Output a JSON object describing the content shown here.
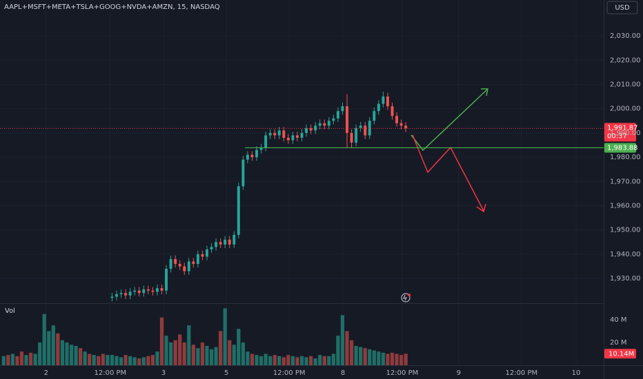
{
  "chart_data": {
    "type": "candlestick",
    "title": "AAPL+MSFT+META+TSLA+GOOG+NVDA+AMZN, 15, NASDAQ",
    "currency": "USD",
    "up_color": "#26a69a",
    "down_color": "#ef5350",
    "grid": true,
    "xlim": [
      -0.5,
      132.8
    ],
    "xticks": [
      {
        "value": 9.4,
        "label": "2"
      },
      {
        "value": 23.6,
        "label": "12:00 PM"
      },
      {
        "value": 35.4,
        "label": "3"
      },
      {
        "value": 49.3,
        "label": "5"
      },
      {
        "value": 63.2,
        "label": "12:00 PM"
      },
      {
        "value": 75.1,
        "label": "8"
      },
      {
        "value": 88.2,
        "label": "12:00 PM"
      },
      {
        "value": 100.7,
        "label": "9"
      },
      {
        "value": 114.6,
        "label": "12:00 PM"
      },
      {
        "value": 126.7,
        "label": "10"
      }
    ],
    "ylim": [
      1919.8,
      2044.8
    ],
    "yticks": [
      {
        "value": 1930,
        "label": "1,930.00"
      },
      {
        "value": 1940,
        "label": "1,940.00"
      },
      {
        "value": 1950,
        "label": "1,950.00"
      },
      {
        "value": 1960,
        "label": "1,960.00"
      },
      {
        "value": 1970,
        "label": "1,970.00"
      },
      {
        "value": 1980,
        "label": "1,980.00"
      },
      {
        "value": 1990,
        "label": "1,990.00"
      },
      {
        "value": 2000,
        "label": "2,000.00"
      },
      {
        "value": 2010,
        "label": "2,010.00"
      },
      {
        "value": 2020,
        "label": "2,020.00"
      },
      {
        "value": 2030,
        "label": "2,030.00"
      }
    ],
    "open": [
      null,
      null,
      null,
      null,
      null,
      null,
      null,
      null,
      null,
      null,
      null,
      null,
      null,
      null,
      null,
      null,
      null,
      null,
      null,
      null,
      null,
      null,
      null,
      null,
      1922,
      1922.5,
      1923.5,
      1924,
      1923,
      1924.5,
      1925,
      1924,
      1925.5,
      1925,
      1924.5,
      1926,
      1925,
      1934,
      1938,
      1936,
      1935,
      1933,
      1937,
      1936,
      1940,
      1939,
      1942,
      1943,
      1945,
      1944,
      1946,
      1944,
      1948,
      1968,
      1979,
      1981,
      1980,
      1983,
      1984,
      1989,
      1990,
      1989,
      1991,
      1988,
      1987,
      1989,
      1988,
      1990,
      1992,
      1991,
      1993,
      1994,
      1993,
      1995,
      1996,
      1999,
      2001,
      1990,
      1986,
      1992,
      1993,
      1989,
      1995,
      1999,
      2002,
      2005,
      2001,
      1997,
      1994,
      1993
    ],
    "high": [
      null,
      null,
      null,
      null,
      null,
      null,
      null,
      null,
      null,
      null,
      null,
      null,
      null,
      null,
      null,
      null,
      null,
      null,
      null,
      null,
      null,
      null,
      null,
      null,
      1924,
      1925,
      1925.5,
      1925.5,
      1926,
      1926.5,
      1926.5,
      1927,
      1927,
      1926.5,
      1927.5,
      1927.5,
      1935.5,
      1939.5,
      1939.5,
      1937.5,
      1936.5,
      1938.5,
      1938.5,
      1941.5,
      1941.5,
      1943.5,
      1944.5,
      1946.5,
      1946.5,
      1947.5,
      1947.5,
      1949.5,
      1969.5,
      1980.5,
      1982.5,
      1982.5,
      1984.5,
      1985.5,
      1990.5,
      1991.5,
      1991.5,
      1992.5,
      1992.5,
      1989.5,
      1990.5,
      1990.5,
      1991.5,
      1993.5,
      1993.5,
      1994.5,
      1995.5,
      1995.5,
      1996.5,
      1997.5,
      2000.5,
      2002.5,
      2006,
      1991.5,
      1993.5,
      1994.5,
      1994.5,
      1996.5,
      2000.5,
      2003.5,
      2007,
      2006.5,
      2002.5,
      1998.5,
      1995.5,
      1994.5
    ],
    "low": [
      null,
      null,
      null,
      null,
      null,
      null,
      null,
      null,
      null,
      null,
      null,
      null,
      null,
      null,
      null,
      null,
      null,
      null,
      null,
      null,
      null,
      null,
      null,
      null,
      1920.5,
      1921,
      1922,
      1921.5,
      1921.5,
      1923,
      1922.5,
      1922.5,
      1923.5,
      1923,
      1923,
      1923.5,
      1923.5,
      1932.5,
      1934.5,
      1933.5,
      1931.5,
      1931.5,
      1934.5,
      1934.5,
      1937.5,
      1937.5,
      1940.5,
      1941.5,
      1942.5,
      1942.5,
      1942.5,
      1942.5,
      1946.5,
      1966.5,
      1977.5,
      1978.5,
      1978.5,
      1981.5,
      1982.5,
      1987.5,
      1987.5,
      1987.5,
      1986.5,
      1985.5,
      1985.5,
      1986.5,
      1986.5,
      1988.5,
      1989.5,
      1989.5,
      1991.5,
      1991.5,
      1991.5,
      1993.5,
      1994.5,
      1997.5,
      1984,
      1984,
      1984.5,
      1990.5,
      1987.5,
      1987.5,
      1993.5,
      1997.5,
      2000.5,
      1999.5,
      1995.5,
      1992.5,
      1991.5,
      1990.37
    ],
    "close": [
      null,
      null,
      null,
      null,
      null,
      null,
      null,
      null,
      null,
      null,
      null,
      null,
      null,
      null,
      null,
      null,
      null,
      null,
      null,
      null,
      null,
      null,
      null,
      null,
      1922.5,
      1923.5,
      1924,
      1923,
      1924.5,
      1925,
      1924,
      1925.5,
      1925,
      1924.5,
      1926,
      1925,
      1934,
      1938,
      1936,
      1935,
      1933,
      1937,
      1936,
      1940,
      1939,
      1942,
      1943,
      1945,
      1944,
      1946,
      1944,
      1948,
      1968,
      1979,
      1981,
      1980,
      1983,
      1984,
      1989,
      1990,
      1989,
      1991,
      1988,
      1987,
      1989,
      1988,
      1990,
      1992,
      1991,
      1993,
      1994,
      1993,
      1995,
      1996,
      1999,
      2001,
      1990,
      1986,
      1992,
      1993,
      1989,
      1995,
      1999,
      2002,
      2005,
      2001,
      1997,
      1994,
      1993,
      1991.87
    ],
    "last_price": {
      "value": 1991.87,
      "label": "1,991.87"
    },
    "countdown": "00:37",
    "level": {
      "value": 1983.88,
      "label": "1,983.88"
    },
    "volume": {
      "name": "Vol",
      "up_color": "#1f6f67",
      "down_color": "#8f3b3d",
      "ylim": [
        0,
        54.5
      ],
      "yticks": [
        {
          "value": 20,
          "label": "20 M"
        },
        {
          "value": 40,
          "label": "40 M"
        }
      ],
      "values": [
        8,
        9,
        10,
        8,
        12,
        9,
        11,
        10,
        20,
        45,
        30,
        35,
        28,
        22,
        20,
        18,
        17,
        15,
        12,
        10,
        9,
        8,
        10,
        9,
        9,
        8,
        7,
        9,
        8,
        7,
        6,
        7,
        8,
        9,
        12,
        42,
        26,
        20,
        22,
        27,
        20,
        35,
        18,
        15,
        20,
        17,
        14,
        16,
        30,
        50,
        22,
        18,
        32,
        20,
        12,
        10,
        9,
        8,
        10,
        8,
        9,
        8,
        7,
        9,
        8,
        7,
        8,
        7,
        8,
        6,
        9,
        8,
        8,
        10,
        26,
        44,
        30,
        22,
        17,
        16,
        15,
        14,
        13,
        12,
        11,
        10,
        11,
        10,
        9,
        10.14
      ],
      "value_labels": [
        null,
        null,
        null,
        null,
        null,
        null,
        null,
        null,
        null,
        null,
        null,
        null,
        null,
        null,
        null,
        null,
        null,
        null,
        null,
        null,
        null,
        null,
        null,
        null,
        null,
        null,
        null,
        null,
        null,
        null,
        null,
        null,
        null,
        null,
        null,
        null,
        null,
        null,
        null,
        null,
        null,
        null,
        null,
        null,
        null,
        null,
        null,
        null,
        null,
        null,
        null,
        null,
        null,
        null,
        null,
        null,
        null,
        null,
        null,
        null,
        null,
        null,
        null,
        null,
        null,
        null,
        null,
        null,
        null,
        null,
        null,
        null,
        null,
        null,
        null,
        null,
        null,
        null,
        null,
        null,
        null,
        null,
        null,
        null,
        null,
        null,
        null,
        null,
        null,
        "10.14M"
      ],
      "directions": [
        "up",
        "down",
        "up",
        "down",
        "down",
        "up",
        "down",
        "up",
        "up",
        "up",
        "up",
        "up",
        "down",
        "up",
        "up",
        "up",
        "up",
        "down",
        "up",
        "down",
        "up",
        "down",
        "down",
        "up",
        "up",
        "up",
        "up",
        "down",
        "up",
        "up",
        "down",
        "up",
        "down",
        "down",
        "up",
        "down",
        "up",
        "up",
        "down",
        "down",
        "down",
        "up",
        "down",
        "up",
        "down",
        "up",
        "up",
        "up",
        "down",
        "up",
        "down",
        "up",
        "up",
        "up",
        "up",
        "down",
        "up",
        "up",
        "up",
        "up",
        "down",
        "up",
        "down",
        "down",
        "up",
        "down",
        "up",
        "up",
        "down",
        "up",
        "up",
        "down",
        "up",
        "up",
        "up",
        "up",
        "down",
        "down",
        "up",
        "up",
        "down",
        "up",
        "up",
        "up",
        "up",
        "down",
        "down",
        "down",
        "down",
        "down"
      ]
    }
  }
}
